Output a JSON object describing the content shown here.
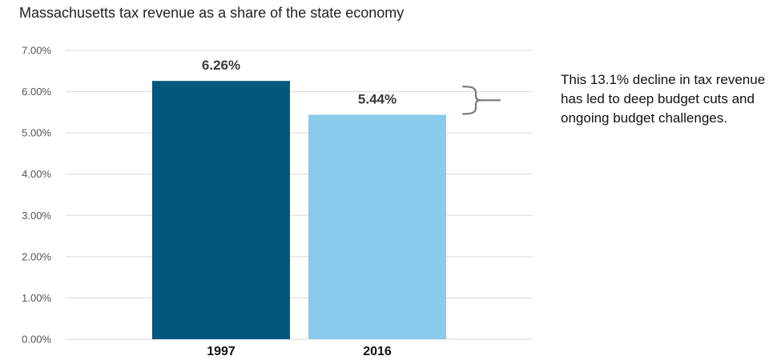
{
  "chart_data": {
    "type": "bar",
    "title": "Massachusetts tax revenue as a share of the state economy",
    "categories": [
      "1997",
      "2016"
    ],
    "values": [
      6.26,
      5.44
    ],
    "value_labels": [
      "6.26%",
      "5.44%"
    ],
    "bar_colors": [
      "#02577F",
      "#89CBEA"
    ],
    "ylim": [
      0,
      7
    ],
    "yticks": [
      0,
      1,
      2,
      3,
      4,
      5,
      6,
      7
    ],
    "ytick_labels": [
      "0.00%",
      "1.00%",
      "2.00%",
      "3.00%",
      "4.00%",
      "5.00%",
      "6.00%",
      "7.00%"
    ],
    "grid": true,
    "xlabel": "",
    "ylabel": "",
    "annotation": "This 13.1% decline in tax revenue has led to deep budget cuts and ongoing budget challenges."
  }
}
